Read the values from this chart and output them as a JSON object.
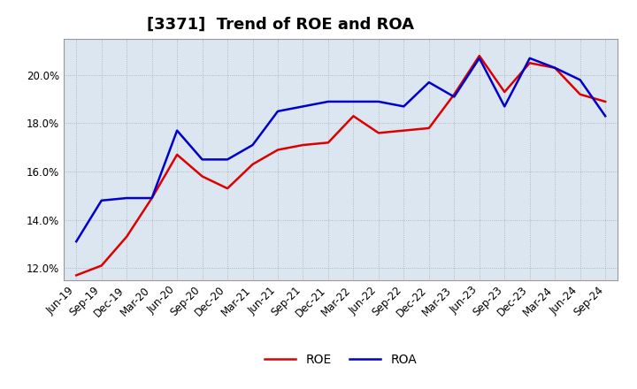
{
  "title": "[3371]  Trend of ROE and ROA",
  "x_labels": [
    "Jun-19",
    "Sep-19",
    "Dec-19",
    "Mar-20",
    "Jun-20",
    "Sep-20",
    "Dec-20",
    "Mar-21",
    "Jun-21",
    "Sep-21",
    "Dec-21",
    "Mar-22",
    "Jun-22",
    "Sep-22",
    "Dec-22",
    "Mar-23",
    "Jun-23",
    "Sep-23",
    "Dec-23",
    "Mar-24",
    "Jun-24",
    "Sep-24"
  ],
  "roe": [
    11.7,
    12.1,
    13.3,
    14.9,
    16.7,
    15.8,
    15.3,
    16.3,
    16.9,
    17.1,
    17.2,
    18.3,
    17.6,
    17.7,
    17.8,
    19.2,
    20.8,
    19.3,
    20.5,
    20.3,
    19.2,
    18.9
  ],
  "roa": [
    13.1,
    14.8,
    14.9,
    14.9,
    17.7,
    16.5,
    16.5,
    17.1,
    18.5,
    18.7,
    18.9,
    18.9,
    18.9,
    18.7,
    19.7,
    19.1,
    20.7,
    18.7,
    20.7,
    20.3,
    19.8,
    18.3
  ],
  "roe_color": "#dd0000",
  "roa_color": "#0000cc",
  "background_color": "#ffffff",
  "plot_bg_color": "#dce6f1",
  "grid_color": "#aaaaaa",
  "ylim": [
    11.5,
    21.5
  ],
  "yticks": [
    12.0,
    14.0,
    16.0,
    18.0,
    20.0
  ],
  "legend_roe": "ROE",
  "legend_roa": "ROA",
  "title_fontsize": 13,
  "axis_fontsize": 8.5,
  "legend_fontsize": 10,
  "linewidth": 1.8
}
